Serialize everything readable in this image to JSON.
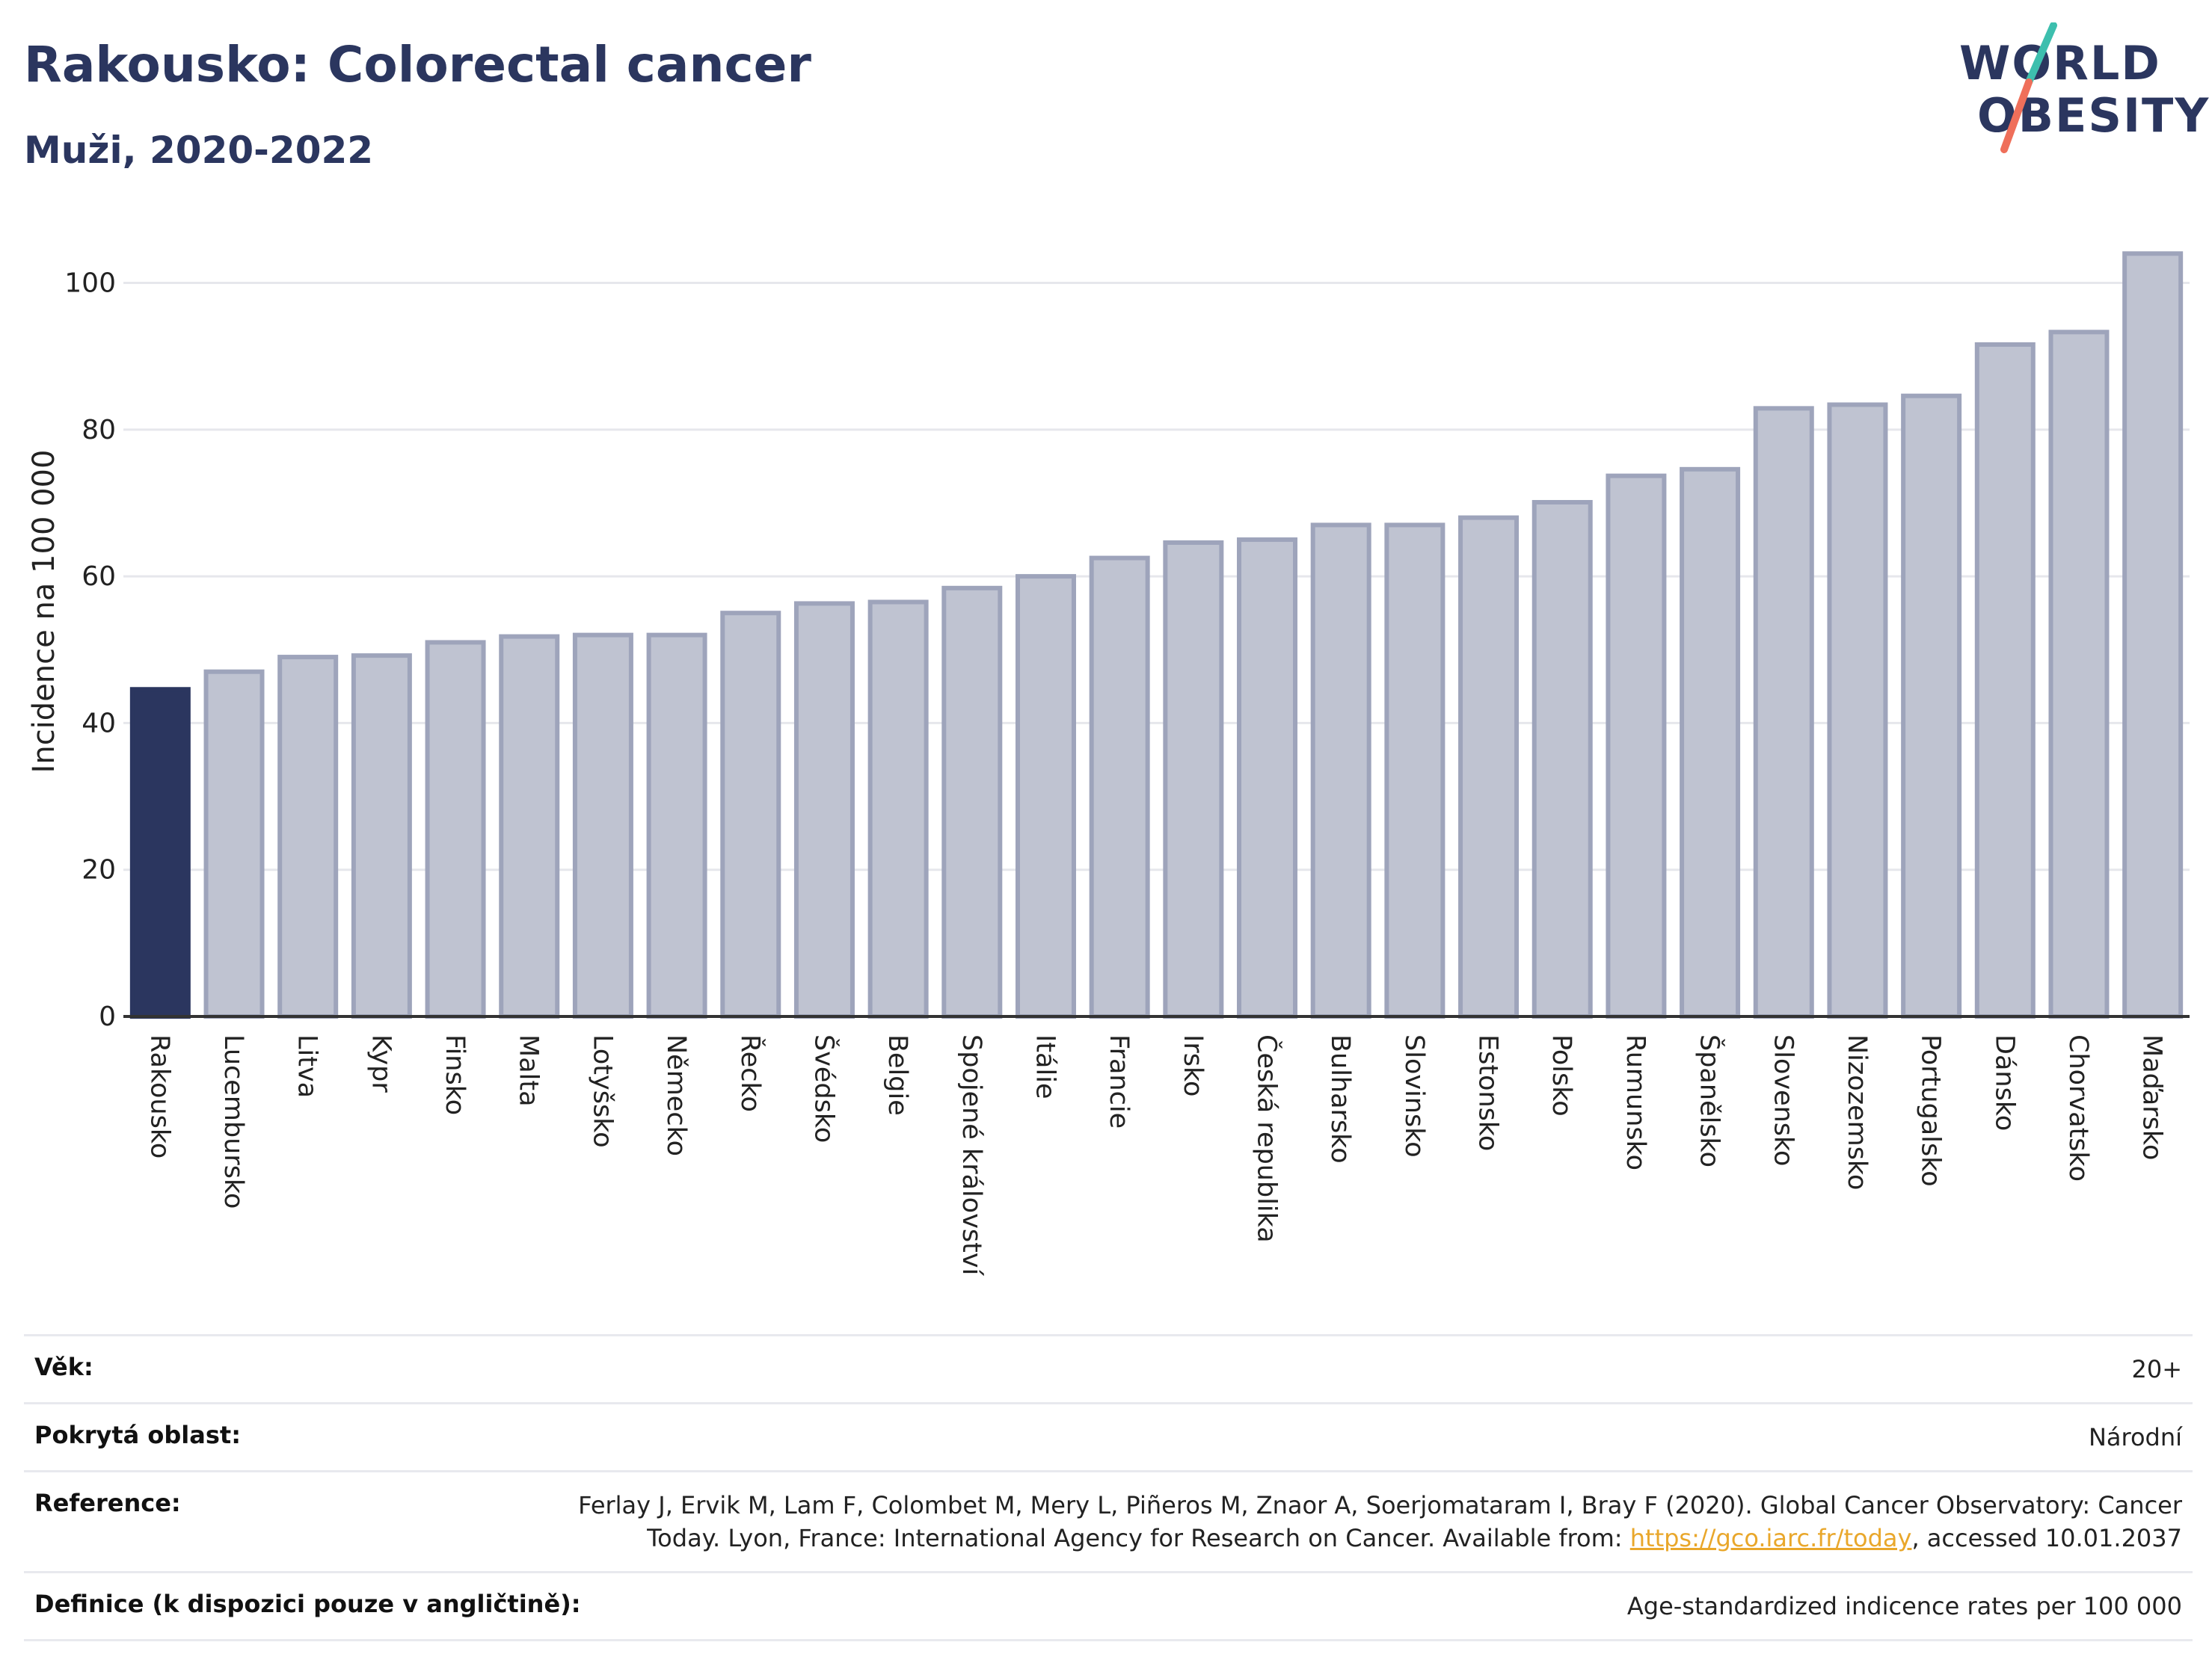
{
  "header": {
    "title": "Rakousko: Colorectal cancer",
    "subtitle": "Muži, 2020-2022"
  },
  "logo": {
    "line1": "WORLD",
    "line2": "OBESITY",
    "colors": {
      "text": "#2b365f",
      "slash_top": "#3dbfae",
      "slash_bottom": "#ef6f5a"
    }
  },
  "chart_data": {
    "type": "bar",
    "title": "Rakousko: Colorectal cancer",
    "subtitle": "Muži, 2020-2022",
    "ylabel": "Incidence na 100 000",
    "xlabel": "",
    "ylim": [
      0,
      108
    ],
    "yticks": [
      0,
      20,
      40,
      60,
      80,
      100
    ],
    "grid": true,
    "highlight": "Rakousko",
    "colors": {
      "highlight": "#2b365f",
      "bar_fill": "#bfc3d1",
      "bar_border": "#9ea4bb"
    },
    "categories": [
      "Rakousko",
      "Lucembursko",
      "Litva",
      "Kypr",
      "Finsko",
      "Malta",
      "Lotyšsko",
      "Německo",
      "Řecko",
      "Švédsko",
      "Belgie",
      "Spojené království",
      "Itálie",
      "Francie",
      "Irsko",
      "Česká republika",
      "Bulharsko",
      "Slovinsko",
      "Estonsko",
      "Polsko",
      "Rumunsko",
      "Španělsko",
      "Slovensko",
      "Nizozemsko",
      "Portugalsko",
      "Dánsko",
      "Chorvatsko",
      "Maďarsko"
    ],
    "values": [
      44.6,
      47.0,
      49.0,
      49.2,
      51.0,
      51.8,
      52.0,
      52.0,
      55.0,
      56.3,
      56.5,
      58.4,
      60.0,
      62.5,
      64.6,
      65.0,
      67.0,
      67.0,
      68.0,
      70.1,
      73.7,
      74.6,
      82.9,
      83.4,
      84.6,
      91.6,
      93.3,
      104.0
    ]
  },
  "meta": {
    "rows": [
      {
        "key": "Věk:",
        "value": "20+"
      },
      {
        "key": "Pokrytá oblast:",
        "value": "Národní"
      },
      {
        "key": "Reference:",
        "value": "Ferlay J, Ervik M, Lam F, Colombet M, Mery L, Piñeros M, Znaor A, Soerjomataram I, Bray F (2020). Global Cancer Observatory: Cancer Today. Lyon, France: International Agency for Research on Cancer. Available from: ",
        "link": "https://gco.iarc.fr/today",
        "value_after": ", accessed 10.01.2037"
      },
      {
        "key": "Definice (k dispozici pouze v angličtině):",
        "value": "Age-standardized indicence rates per 100 000"
      }
    ]
  }
}
